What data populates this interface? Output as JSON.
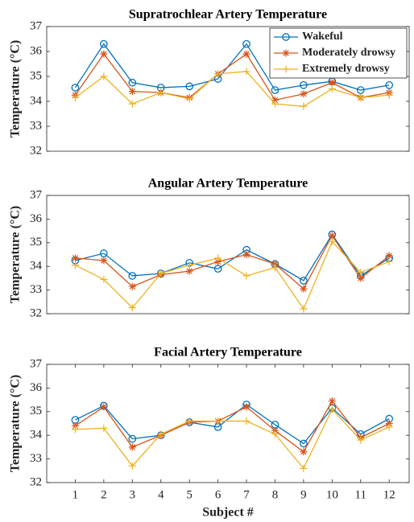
{
  "chart_data": [
    {
      "type": "line",
      "title": "Supratrochlear Artery Temperature",
      "ylabel": "Temperature (°C)",
      "x": [
        1,
        2,
        3,
        4,
        5,
        6,
        7,
        8,
        9,
        10,
        11,
        12
      ],
      "xlim": [
        0,
        12.7
      ],
      "ylim": [
        32,
        37
      ],
      "yticks": [
        32,
        33,
        34,
        35,
        36,
        37
      ],
      "legend": "northeast",
      "series": [
        {
          "name": "Wakeful",
          "color": "#0072bd",
          "marker": "o",
          "values": [
            34.55,
            36.3,
            34.75,
            34.55,
            34.6,
            34.9,
            36.3,
            34.45,
            34.65,
            34.8,
            34.45,
            34.65
          ]
        },
        {
          "name": "Moderately drowsy",
          "color": "#d95319",
          "marker": "*",
          "values": [
            34.25,
            35.9,
            34.4,
            34.35,
            34.15,
            35.1,
            35.9,
            34.05,
            34.3,
            34.75,
            34.15,
            34.35
          ]
        },
        {
          "name": "Extremely drowsy",
          "color": "#edb120",
          "marker": "+",
          "values": [
            34.15,
            35.0,
            33.9,
            34.35,
            34.1,
            35.1,
            35.2,
            33.9,
            33.8,
            34.5,
            34.15,
            34.25
          ]
        }
      ]
    },
    {
      "type": "line",
      "title": "Angular Artery Temperature",
      "ylabel": "Temperature (°C)",
      "x": [
        1,
        2,
        3,
        4,
        5,
        6,
        7,
        8,
        9,
        10,
        11,
        12
      ],
      "xlim": [
        0,
        12.7
      ],
      "ylim": [
        32,
        37
      ],
      "yticks": [
        32,
        33,
        34,
        35,
        36,
        37
      ],
      "series": [
        {
          "name": "Wakeful",
          "color": "#0072bd",
          "marker": "o",
          "values": [
            34.25,
            34.55,
            33.6,
            33.7,
            34.15,
            33.9,
            34.7,
            34.1,
            33.4,
            35.35,
            33.6,
            34.35
          ]
        },
        {
          "name": "Moderately drowsy",
          "color": "#d95319",
          "marker": "*",
          "values": [
            34.35,
            34.25,
            33.15,
            33.65,
            33.8,
            34.2,
            34.5,
            34.1,
            33.05,
            35.3,
            33.5,
            34.45
          ]
        },
        {
          "name": "Extremely drowsy",
          "color": "#edb120",
          "marker": "+",
          "values": [
            34.05,
            33.45,
            32.25,
            33.7,
            34.05,
            34.35,
            33.6,
            33.95,
            32.2,
            35.05,
            33.75,
            34.2
          ]
        }
      ]
    },
    {
      "type": "line",
      "title": "Facial Artery Temperature",
      "ylabel": "Temperature (°C)",
      "xlabel": "Subject #",
      "x": [
        1,
        2,
        3,
        4,
        5,
        6,
        7,
        8,
        9,
        10,
        11,
        12
      ],
      "xlim": [
        0,
        12.7
      ],
      "xticks": [
        1,
        2,
        3,
        4,
        5,
        6,
        7,
        8,
        9,
        10,
        11,
        12
      ],
      "ylim": [
        32,
        37
      ],
      "yticks": [
        32,
        33,
        34,
        35,
        36,
        37
      ],
      "series": [
        {
          "name": "Wakeful",
          "color": "#0072bd",
          "marker": "o",
          "values": [
            34.65,
            35.25,
            33.85,
            34.0,
            34.55,
            34.35,
            35.3,
            34.45,
            33.65,
            35.15,
            34.05,
            34.7
          ]
        },
        {
          "name": "Moderately drowsy",
          "color": "#d95319",
          "marker": "*",
          "values": [
            34.4,
            35.2,
            33.5,
            34.0,
            34.55,
            34.6,
            35.2,
            34.2,
            33.3,
            35.45,
            33.9,
            34.5
          ]
        },
        {
          "name": "Extremely drowsy",
          "color": "#edb120",
          "marker": "+",
          "values": [
            34.25,
            34.3,
            32.7,
            34.05,
            34.6,
            34.6,
            34.6,
            34.05,
            32.6,
            35.1,
            33.8,
            34.35
          ]
        }
      ]
    }
  ]
}
